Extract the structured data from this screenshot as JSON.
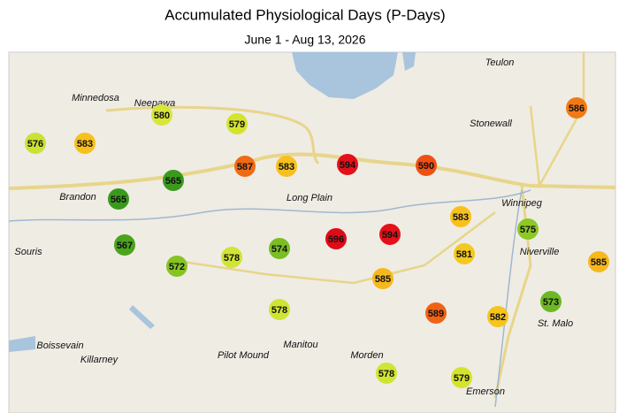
{
  "title": "Accumulated Physiological Days (P-Days)",
  "subtitle": "June 1 - Aug 13, 2026",
  "places": [
    "Teulon",
    "Minnedosa",
    "Neepawa",
    "Stonewall",
    "Winnipeg",
    "Brandon",
    "Long Plain",
    "Souris",
    "Niverville",
    "St. Malo",
    "Boissevain",
    "Killarney",
    "Pilot Mound",
    "Manitou",
    "Morden",
    "Emerson"
  ],
  "stations": [
    {
      "value": 576,
      "color": "#c9e234"
    },
    {
      "value": 583,
      "color": "#f7c01c"
    },
    {
      "value": 580,
      "color": "#d8e63a"
    },
    {
      "value": 579,
      "color": "#d4e42e"
    },
    {
      "value": 565,
      "color": "#3a9a1c"
    },
    {
      "value": 565,
      "color": "#3a9a1c"
    },
    {
      "value": 587,
      "color": "#f06a14"
    },
    {
      "value": 583,
      "color": "#f7c01c"
    },
    {
      "value": 594,
      "color": "#e4101a"
    },
    {
      "value": 590,
      "color": "#ee5014"
    },
    {
      "value": 586,
      "color": "#f27a16"
    },
    {
      "value": 567,
      "color": "#4aa41c"
    },
    {
      "value": 572,
      "color": "#86c424"
    },
    {
      "value": 578,
      "color": "#d0e434"
    },
    {
      "value": 574,
      "color": "#7abe24"
    },
    {
      "value": 596,
      "color": "#e00a18"
    },
    {
      "value": 594,
      "color": "#e4101a"
    },
    {
      "value": 583,
      "color": "#f7c01c"
    },
    {
      "value": 581,
      "color": "#f4c81e"
    },
    {
      "value": 585,
      "color": "#f7b81c"
    },
    {
      "value": 575,
      "color": "#8cc826"
    },
    {
      "value": 585,
      "color": "#f7b81c"
    },
    {
      "value": 578,
      "color": "#d0e434"
    },
    {
      "value": 589,
      "color": "#f06214"
    },
    {
      "value": 582,
      "color": "#f7c41c"
    },
    {
      "value": 573,
      "color": "#6cb824"
    },
    {
      "value": 578,
      "color": "#d0e434"
    },
    {
      "value": 579,
      "color": "#d4e42e"
    }
  ]
}
